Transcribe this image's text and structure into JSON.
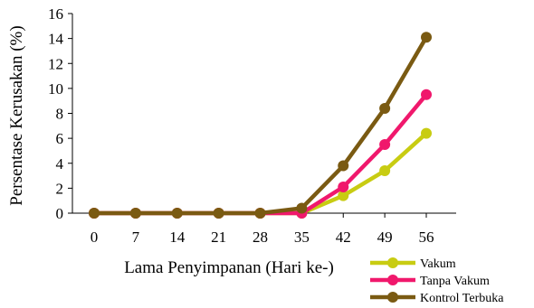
{
  "chart_data": {
    "type": "line",
    "title": "",
    "xlabel": "Lama Penyimpanan (Hari ke-)",
    "ylabel": "Persentase Kerusakan (%)",
    "categories": [
      "0",
      "7",
      "14",
      "21",
      "28",
      "35",
      "42",
      "49",
      "56"
    ],
    "ylim": [
      0,
      16
    ],
    "yticks": [
      "0",
      "2",
      "4",
      "6",
      "8",
      "10",
      "12",
      "14",
      "16"
    ],
    "grid": false,
    "legend_position": "bottom-right",
    "series": [
      {
        "name": "Vakum",
        "color": "#c8cc12",
        "values": [
          0,
          0,
          0,
          0,
          0,
          0,
          1.4,
          3.4,
          6.4
        ]
      },
      {
        "name": "Tanpa Vakum",
        "color": "#f0186c",
        "values": [
          0,
          0,
          0,
          0,
          0,
          0,
          2.1,
          5.5,
          9.5
        ]
      },
      {
        "name": "Kontrol Terbuka",
        "color": "#7a5a12",
        "values": [
          0,
          0,
          0,
          0,
          0,
          0.4,
          3.8,
          8.4,
          14.1
        ]
      }
    ]
  }
}
